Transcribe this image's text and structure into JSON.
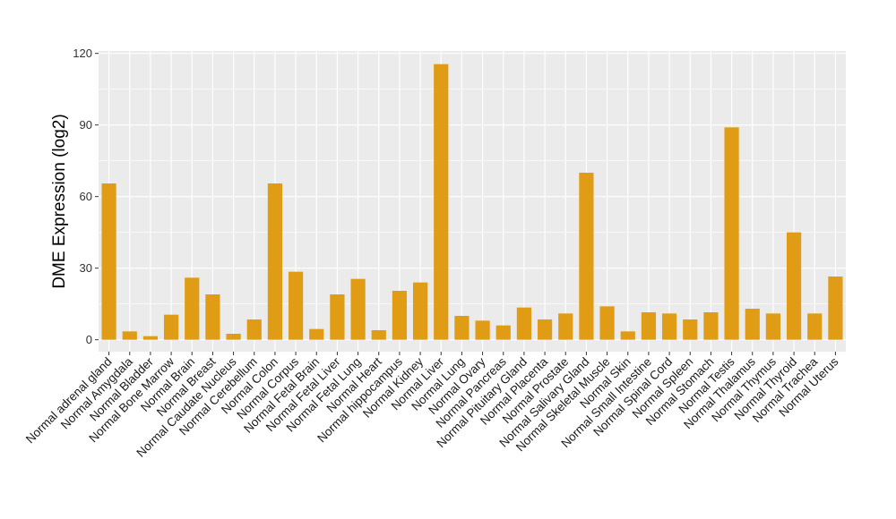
{
  "chart_data": {
    "type": "bar",
    "ylabel": "DME Expression (log2)",
    "xlabel": "",
    "ylim": [
      -5,
      121
    ],
    "yticks": [
      0,
      30,
      60,
      90,
      120
    ],
    "grid": true,
    "legend": "none",
    "colors": {
      "bar": "#E09C15",
      "panel": "#EBEBEB",
      "grid": "#FFFFFF"
    },
    "categories": [
      "Normal adrenal gland",
      "Normal Amygdala",
      "Normal Bladder",
      "Normal Bone Marrow",
      "Normal Brain",
      "Normal Breast",
      "Normal Caudate Nucleus",
      "Normal Cerebellum",
      "Normal Colon",
      "Normal Corpus",
      "Normal Fetal Brain",
      "Normal Fetal Liver",
      "Normal Fetal Lung",
      "Normal Heart",
      "Normal hippocampus",
      "Normal Kidney",
      "Normal Liver",
      "Normal Lung",
      "Normal Ovary",
      "Normal Pancreas",
      "Normal Pituitary Gland",
      "Normal Placenta",
      "Normal Prostate",
      "Normal Salivary Gland",
      "Normal Skeletal Muscle",
      "Normal Skin",
      "Normal Small Intestine",
      "Normal Spinal Cord",
      "Normal Spleen",
      "Normal Stomach",
      "Normal Testis",
      "Normal Thalamus",
      "Normal Thymus",
      "Normal Thyroid",
      "Normal Trachea",
      "Normal Uterus"
    ],
    "values": [
      65.5,
      3.5,
      1.5,
      10.5,
      26,
      19,
      2.5,
      8.5,
      65.5,
      28.5,
      4.5,
      19,
      25.5,
      4,
      20.5,
      24,
      115.5,
      10,
      8,
      6,
      13.5,
      8.5,
      11,
      70,
      14,
      3.5,
      11.5,
      11,
      8.5,
      11.5,
      89,
      13,
      11,
      45,
      11,
      26.5
    ]
  }
}
